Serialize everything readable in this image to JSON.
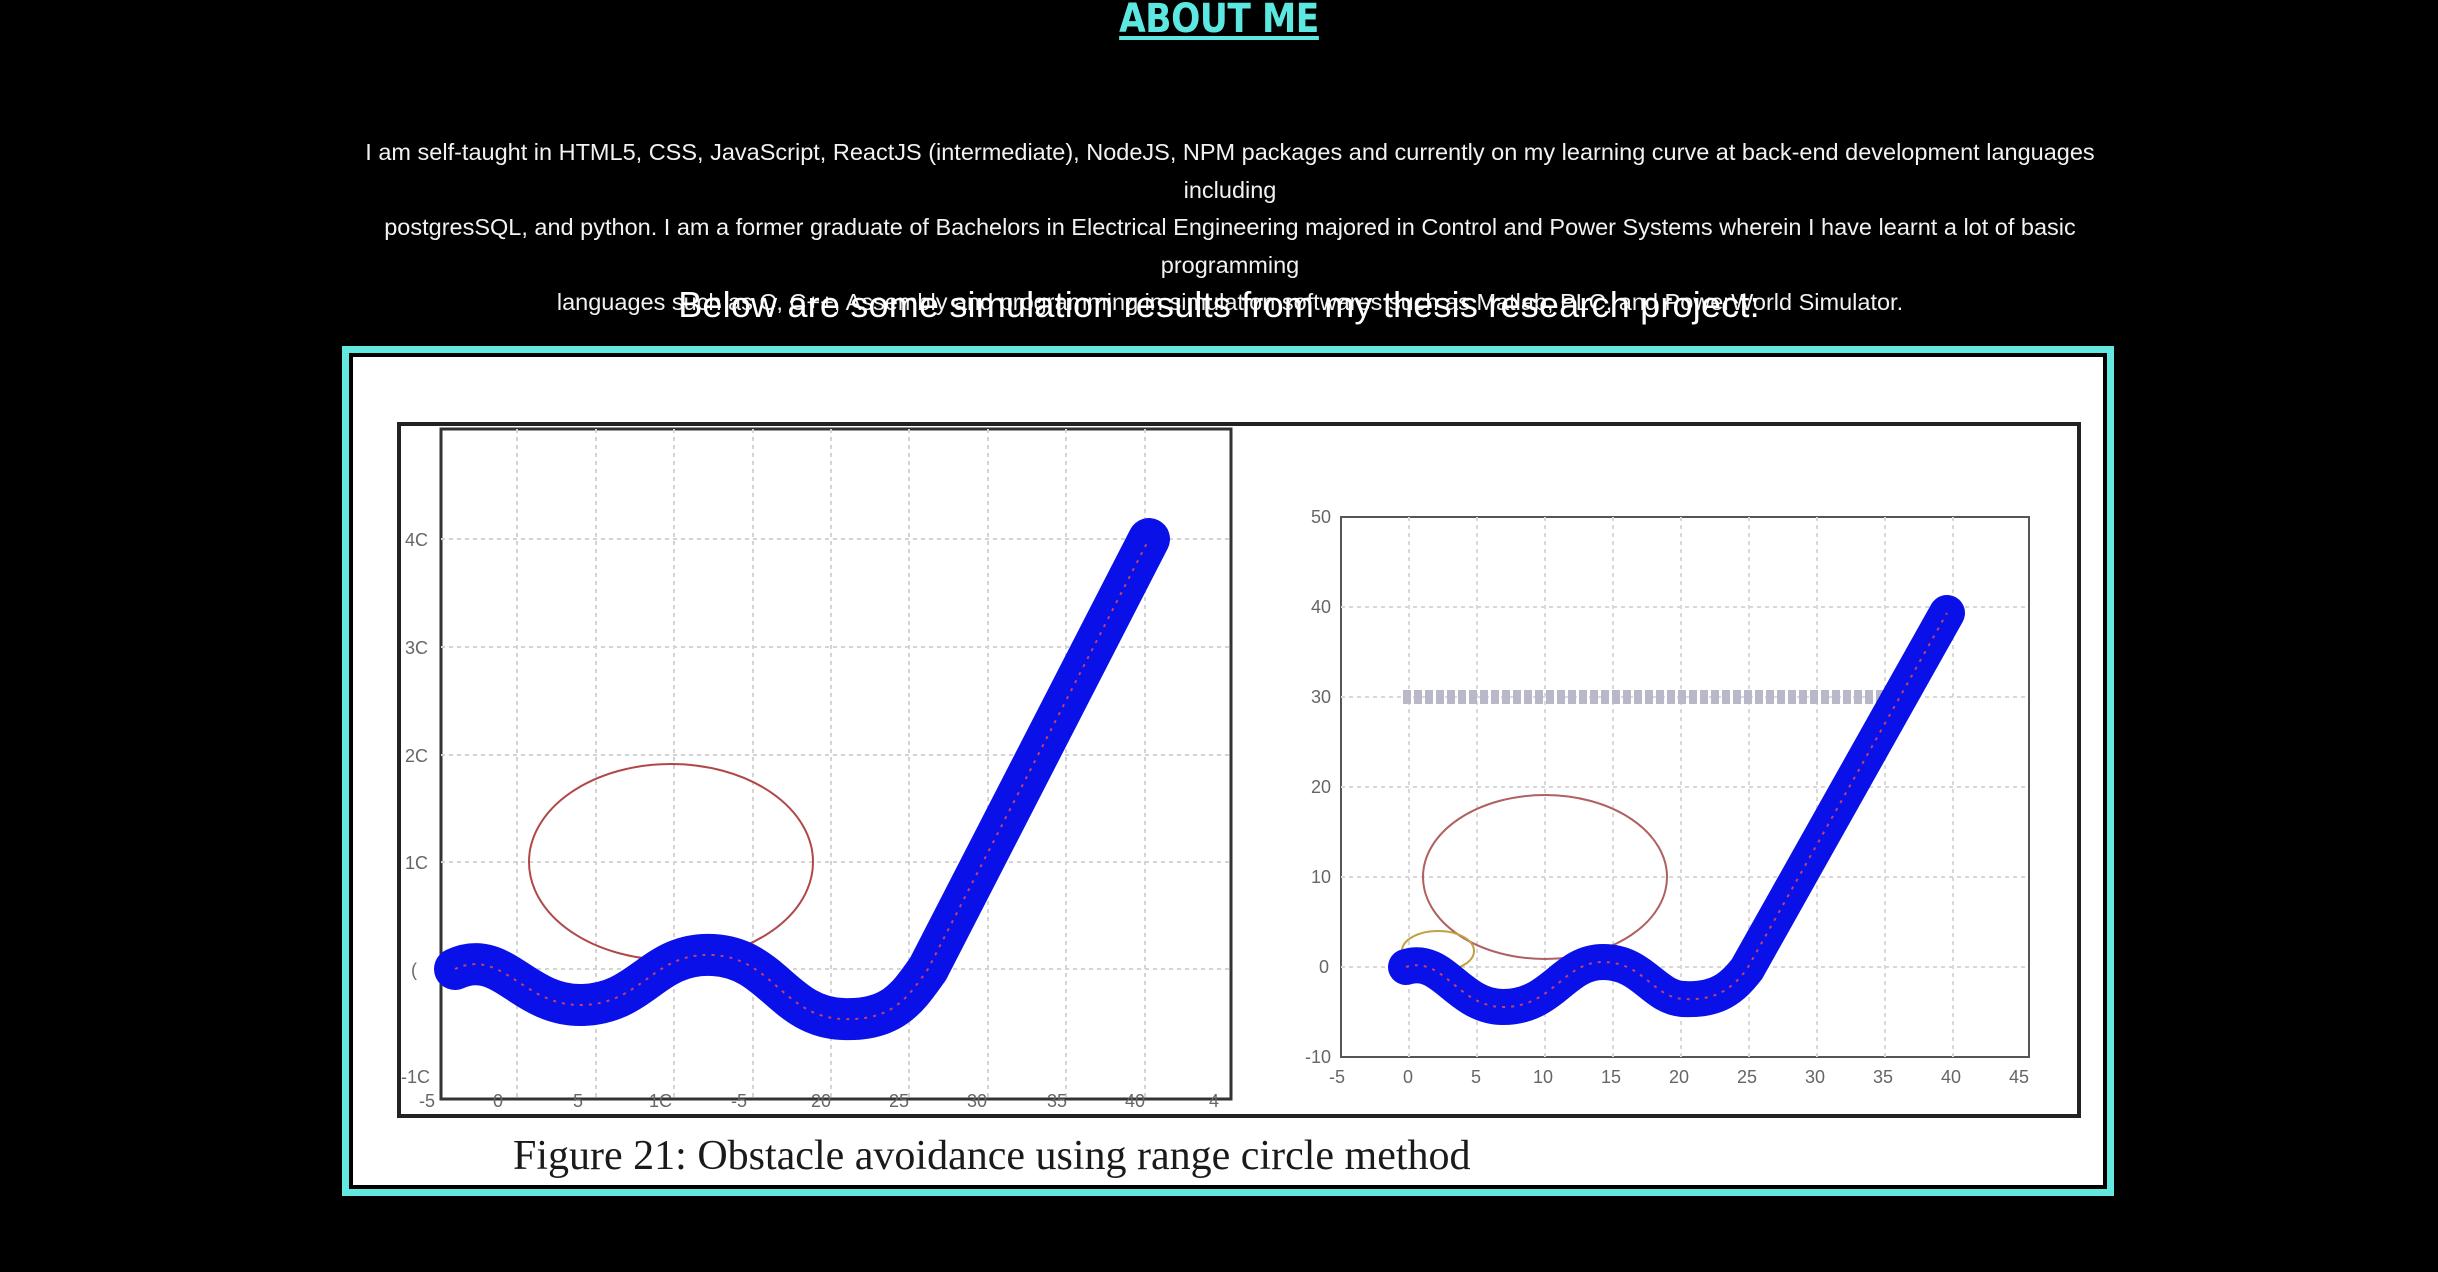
{
  "header": {
    "title": "ABOUT ME"
  },
  "about": {
    "line1": "I am self-taught in HTML5, CSS, JavaScript, ReactJS (intermediate), NodeJS, NPM packages and currently on my learning curve at back-end development languages including",
    "line2": "postgresSQL, and python. I am a former graduate of Bachelors in Electrical Engineering majored in Control and Power Systems wherein I have learnt a lot of basic programming",
    "line3": "languages such as C, C++, Assembly and programming in simulation softwares such as Matlab, PLC, and PowerWorld Simulator."
  },
  "simulation_heading": "Below are some simulation results from my thesis research project:",
  "figure": {
    "caption": "Figure 21: Obstacle avoidance using range circle method",
    "colors": {
      "frame": "#62e8df",
      "path": "#0a10e8",
      "obstacle_circle": "#b04848",
      "wall": "#b8b8c8"
    },
    "left_plot": {
      "x_ticks": [
        "-5",
        "0",
        "5",
        "1C",
        "-5",
        "20",
        "25",
        "30",
        "35",
        "40",
        "4"
      ],
      "y_ticks": [
        "4C",
        "3C",
        "2C",
        "1C",
        "(",
        "-1C"
      ]
    },
    "right_plot": {
      "x_ticks": [
        "-5",
        "0",
        "5",
        "10",
        "15",
        "20",
        "25",
        "30",
        "35",
        "40",
        "45"
      ],
      "y_ticks": [
        "50",
        "40",
        "30",
        "20",
        "10",
        "0",
        "-10"
      ]
    }
  }
}
